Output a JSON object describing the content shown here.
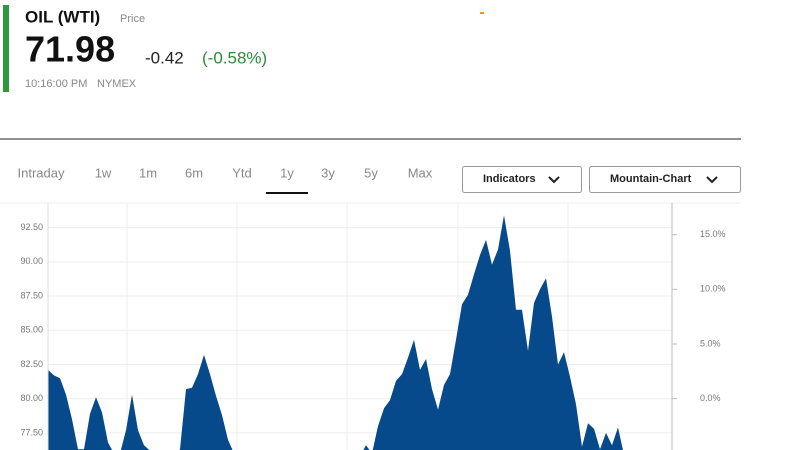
{
  "header": {
    "title": "OIL (WTI)",
    "label": "Price",
    "price": "71.98",
    "change": "-0.42",
    "change_pct": "(-0.58%)",
    "time": "10:16:00 PM",
    "exchange": "NYMEX"
  },
  "tabs": [
    "Intraday",
    "1w",
    "1m",
    "6m",
    "Ytd",
    "1y",
    "3y",
    "5y",
    "Max"
  ],
  "active_tab": "1y",
  "buttons": [
    "Indicators",
    "Mountain-Chart"
  ],
  "chart_data": {
    "type": "area",
    "color": "#064a8c",
    "values": [
      82.1,
      81.7,
      81.5,
      80.3,
      78.5,
      76.3,
      76.3,
      78.9,
      80.1,
      79.0,
      76.8,
      76.0,
      76.0,
      77.7,
      80.3,
      77.7,
      76.6,
      76.2,
      75.9,
      75.9,
      75.9,
      75.9,
      76.3,
      80.7,
      80.8,
      81.8,
      83.2,
      81.8,
      80.2,
      78.8,
      77.0,
      76.0,
      75.8,
      75.8,
      75.8,
      75.8,
      75.8,
      75.8,
      75.8,
      75.8,
      75.8,
      75.8,
      75.8,
      75.8,
      75.8,
      75.8,
      75.8,
      75.8,
      75.8,
      75.8,
      75.8,
      75.8,
      75.8,
      76.6,
      76.0,
      78.0,
      79.3,
      79.9,
      81.3,
      81.8,
      83.0,
      84.3,
      82.1,
      82.9,
      80.7,
      79.2,
      81.0,
      81.8,
      84.3,
      86.9,
      87.6,
      89.1,
      90.5,
      91.6,
      89.8,
      90.9,
      93.4,
      90.8,
      86.5,
      86.5,
      83.5,
      87.0,
      88.0,
      88.8,
      86.0,
      82.5,
      83.4,
      81.6,
      79.6,
      76.5,
      78.2,
      77.8,
      76.3,
      77.5,
      76.6,
      77.9,
      75.9
    ],
    "ylim": [
      76.25,
      94.3
    ],
    "yticks": [
      {
        "value": 77.5,
        "label": "77.50"
      },
      {
        "value": 80,
        "label": "80.00"
      },
      {
        "value": 82.5,
        "label": "82.50"
      },
      {
        "value": 85,
        "label": "85.00"
      },
      {
        "value": 87.5,
        "label": "87.50"
      },
      {
        "value": 90,
        "label": "90.00"
      },
      {
        "value": 92.5,
        "label": "92.50"
      }
    ],
    "y2lim": [
      -4.7,
      17.9
    ],
    "y2ticks": [
      {
        "value": 0,
        "label": "0.0%"
      },
      {
        "value": 5,
        "label": "5.0%"
      },
      {
        "value": 10,
        "label": "10.0%"
      },
      {
        "value": 15,
        "label": "15.0%"
      }
    ],
    "grid": true
  }
}
